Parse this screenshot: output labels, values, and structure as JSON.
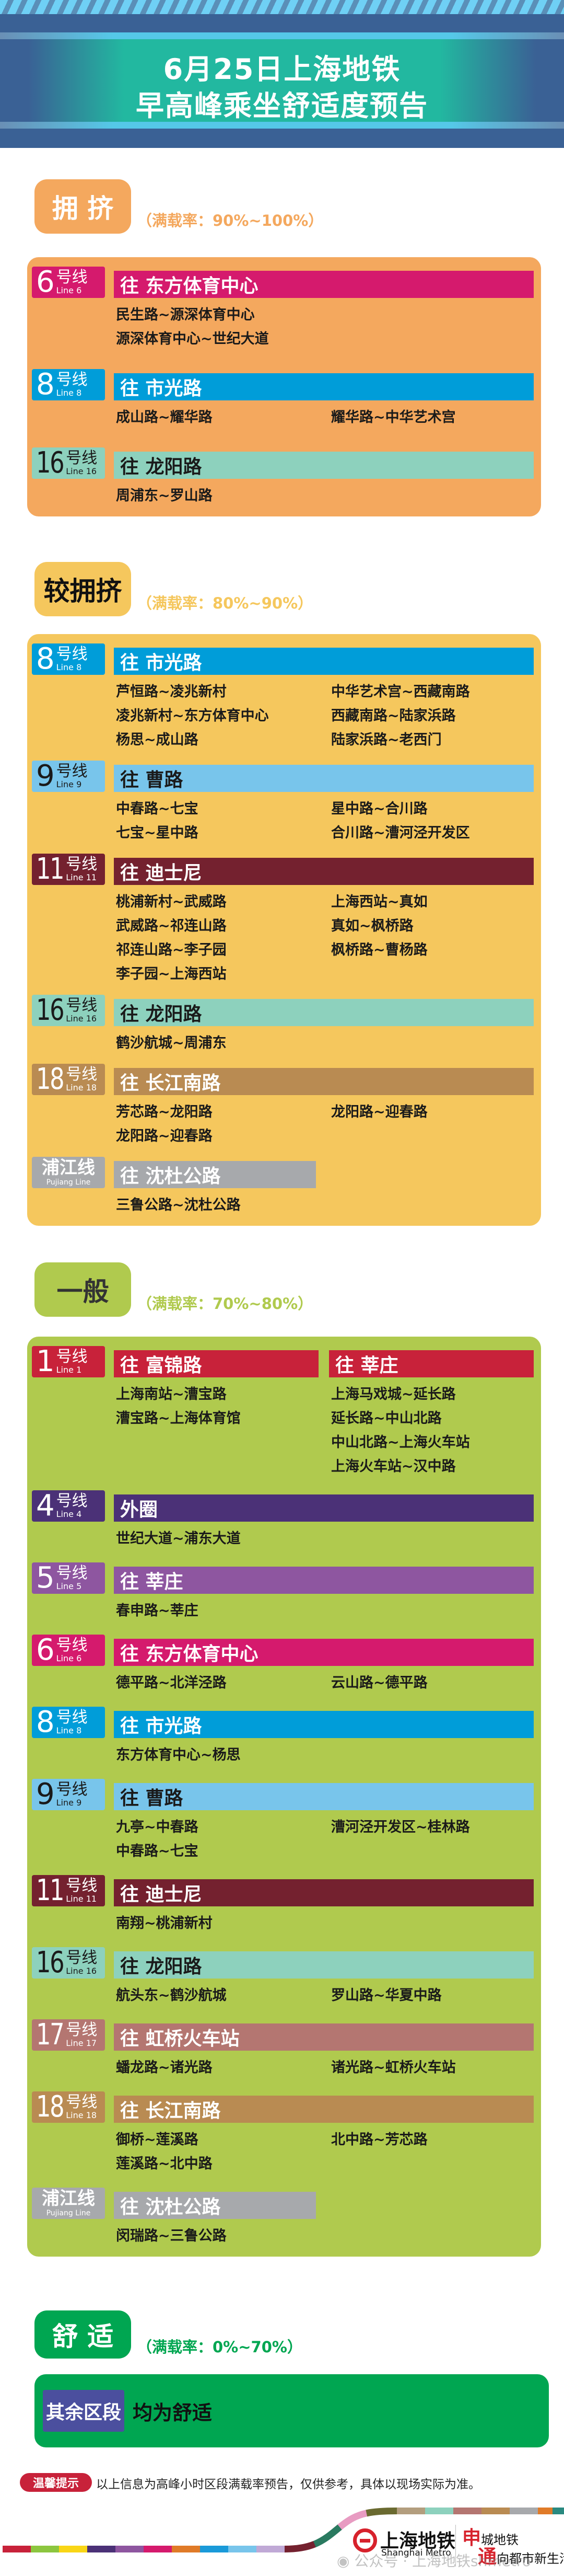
{
  "header": {
    "title_line1": "6月25日上海地铁",
    "title_line2": "早高峰乘坐舒适度预告"
  },
  "sections": [
    {
      "label": "拥 挤",
      "rate": "（满载率：90%~100%）",
      "color": "#f4a85e",
      "label_text_color": "#ffffff",
      "lines": [
        {
          "num": "6",
          "hx": "号线",
          "en": "Line 6",
          "color": "#d51a6d",
          "text": "#ffffff",
          "dirs": [
            {
              "title": "往 东方体育中心",
              "cols": [
                [
                  "民生路~源深体育中心",
                  "源深体育中心~世纪大道"
                ],
                []
              ]
            }
          ]
        },
        {
          "num": "8",
          "hx": "号线",
          "en": "Line 8",
          "color": "#009dd9",
          "text": "#ffffff",
          "dirs": [
            {
              "title": "往 市光路",
              "cols": [
                [
                  "成山路~耀华路"
                ],
                [
                  "耀华路~中华艺术宫"
                ]
              ]
            }
          ]
        },
        {
          "num": "16",
          "hx": "号线",
          "en": "Line 16",
          "color": "#8dd1bd",
          "text": "#1a1a1a",
          "dirs": [
            {
              "title": "往 龙阳路",
              "cols": [
                [
                  "周浦东~罗山路"
                ],
                []
              ]
            }
          ]
        }
      ]
    },
    {
      "label": "较拥挤",
      "rate": "（满载率：80%~90%）",
      "color": "#f5c75d",
      "label_text_color": "#111111",
      "lines": [
        {
          "num": "8",
          "hx": "号线",
          "en": "Line 8",
          "color": "#009dd9",
          "text": "#ffffff",
          "dirs": [
            {
              "title": "往 市光路",
              "cols": [
                [
                  "芦恒路~凌兆新村",
                  "凌兆新村~东方体育中心",
                  "杨思~成山路"
                ],
                [
                  "中华艺术宫~西藏南路",
                  "西藏南路~陆家浜路",
                  "陆家浜路~老西门"
                ]
              ]
            }
          ]
        },
        {
          "num": "9",
          "hx": "号线",
          "en": "Line 9",
          "color": "#78c5eb",
          "text": "#1a1a1a",
          "dirs": [
            {
              "title": "往 曹路",
              "cols": [
                [
                  "中春路~七宝",
                  "七宝~星中路"
                ],
                [
                  "星中路~合川路",
                  "合川路~漕河泾开发区"
                ]
              ]
            }
          ]
        },
        {
          "num": "11",
          "hx": "号线",
          "en": "Line 11",
          "color": "#74212f",
          "text": "#ffffff",
          "dirs": [
            {
              "title": "往 迪士尼",
              "cols": [
                [
                  "桃浦新村~武威路",
                  "武威路~祁连山路",
                  "祁连山路~李子园",
                  "李子园~上海西站"
                ],
                [
                  "上海西站~真如",
                  "真如~枫桥路",
                  "枫桥路~曹杨路"
                ]
              ]
            }
          ]
        },
        {
          "num": "16",
          "hx": "号线",
          "en": "Line 16",
          "color": "#8dd1bd",
          "text": "#1a1a1a",
          "dirs": [
            {
              "title": "往 龙阳路",
              "cols": [
                [
                  "鹤沙航城~周浦东"
                ],
                []
              ]
            }
          ]
        },
        {
          "num": "18",
          "hx": "号线",
          "en": "Line 18",
          "color": "#b98b52",
          "text": "#ffffff",
          "dirs": [
            {
              "title": "往 长江南路",
              "cols": [
                [
                  "芳芯路~龙阳路",
                  "龙阳路~迎春路"
                ],
                [
                  "龙阳路~迎春路"
                ]
              ]
            }
          ]
        },
        {
          "pj": "浦江线",
          "en": "Pujiang Line",
          "color": "#a7a9ac",
          "text": "#ffffff",
          "dirs": [
            {
              "title": "往 沈杜公路",
              "cols": [
                [
                  "三鲁公路~沈杜公路"
                ],
                []
              ]
            }
          ]
        }
      ]
    },
    {
      "label": "一般",
      "rate": "（满载率：70%~80%）",
      "color": "#b0ca4e",
      "label_text_color": "#333333",
      "lines": [
        {
          "num": "1",
          "hx": "号线",
          "en": "Line 1",
          "color": "#c8223a",
          "text": "#ffffff",
          "dirs": [
            {
              "title": "往 富锦路",
              "cols": [
                [
                  "上海南站~漕宝路",
                  "漕宝路~上海体育馆"
                ]
              ]
            },
            {
              "title": "往 莘庄",
              "cols": [
                [
                  "上海马戏城~延长路",
                  "延长路~中山北路",
                  "中山北路~上海火车站",
                  "上海火车站~汉中路"
                ]
              ]
            }
          ]
        },
        {
          "num": "4",
          "hx": "号线",
          "en": "Line 4",
          "color": "#4b3177",
          "text": "#ffffff",
          "dirs": [
            {
              "title": "外圈",
              "cols": [
                [
                  "世纪大道~浦东大道"
                ],
                []
              ]
            }
          ]
        },
        {
          "num": "5",
          "hx": "号线",
          "en": "Line 5",
          "color": "#8e56a0",
          "text": "#ffffff",
          "dirs": [
            {
              "title": "往 莘庄",
              "cols": [
                [
                  "春申路~莘庄"
                ],
                []
              ]
            }
          ]
        },
        {
          "num": "6",
          "hx": "号线",
          "en": "Line 6",
          "color": "#d51a6d",
          "text": "#ffffff",
          "dirs": [
            {
              "title": "往 东方体育中心",
              "cols": [
                [
                  "德平路~北洋泾路"
                ],
                [
                  "云山路~德平路"
                ]
              ]
            }
          ]
        },
        {
          "num": "8",
          "hx": "号线",
          "en": "Line 8",
          "color": "#009dd9",
          "text": "#ffffff",
          "dirs": [
            {
              "title": "往 市光路",
              "cols": [
                [
                  "东方体育中心~杨思"
                ],
                []
              ]
            }
          ]
        },
        {
          "num": "9",
          "hx": "号线",
          "en": "Line 9",
          "color": "#78c5eb",
          "text": "#1a1a1a",
          "dirs": [
            {
              "title": "往 曹路",
              "cols": [
                [
                  "九亭~中春路",
                  "中春路~七宝"
                ],
                [
                  "漕河泾开发区~桂林路"
                ]
              ]
            }
          ]
        },
        {
          "num": "11",
          "hx": "号线",
          "en": "Line 11",
          "color": "#74212f",
          "text": "#ffffff",
          "dirs": [
            {
              "title": "往 迪士尼",
              "cols": [
                [
                  "南翔~桃浦新村"
                ],
                []
              ]
            }
          ]
        },
        {
          "num": "16",
          "hx": "号线",
          "en": "Line 16",
          "color": "#8dd1bd",
          "text": "#1a1a1a",
          "dirs": [
            {
              "title": "往 龙阳路",
              "cols": [
                [
                  "航头东~鹤沙航城"
                ],
                [
                  "罗山路~华夏中路"
                ]
              ]
            }
          ]
        },
        {
          "num": "17",
          "hx": "号线",
          "en": "Line 17",
          "color": "#b47671",
          "text": "#ffffff",
          "dirs": [
            {
              "title": "往 虹桥火车站",
              "cols": [
                [
                  "蟠龙路~诸光路"
                ],
                [
                  "诸光路~虹桥火车站"
                ]
              ]
            }
          ]
        },
        {
          "num": "18",
          "hx": "号线",
          "en": "Line 18",
          "color": "#b98b52",
          "text": "#ffffff",
          "dirs": [
            {
              "title": "往 长江南路",
              "cols": [
                [
                  "御桥~莲溪路",
                  "莲溪路~北中路"
                ],
                [
                  "北中路~芳芯路"
                ]
              ]
            }
          ]
        },
        {
          "pj": "浦江线",
          "en": "Pujiang Line",
          "color": "#a7a9ac",
          "text": "#ffffff",
          "dirs": [
            {
              "title": "往 沈杜公路",
              "cols": [
                [
                  "闵瑞路~三鲁公路"
                ],
                []
              ]
            }
          ]
        }
      ]
    }
  ],
  "comfort": {
    "label": "舒 适",
    "rate": "（满载率：0%~70%）",
    "color": "#00a651",
    "rest_label": "其余区段",
    "rest_text": "均为舒适"
  },
  "tip": {
    "label": "温馨提示",
    "text": "以上信息为高峰小时区段满载率预告，仅供参考，具体以现场实际为准。"
  },
  "footer": {
    "logo_cn": "上海地铁",
    "logo_en": "Shanghai Metro",
    "slogan_1_big": "申",
    "slogan_1": "城地铁",
    "slogan_2_big": "通",
    "slogan_2": "向都市新生活",
    "watermark": "公众号 · 上海地铁shmetro",
    "logo_icon": "shanghai-metro-logo-icon",
    "wechat_icon": "wechat-icon"
  }
}
